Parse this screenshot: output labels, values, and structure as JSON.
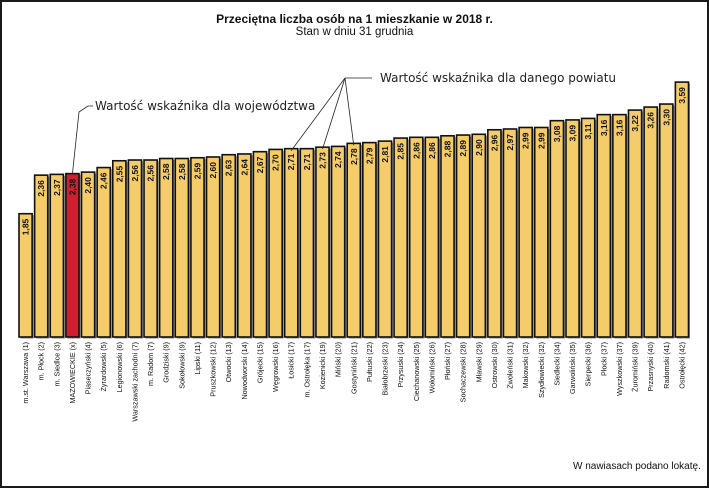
{
  "chart_data": {
    "type": "bar",
    "title": "Przeciętna liczba osób na 1 mieszkanie w 2018 r.",
    "subtitle": "Stan w dniu 31 grudnia",
    "xlabel": "",
    "ylabel": "",
    "grid": false,
    "ylim": [
      0.22,
      3.75
    ],
    "categories": [
      "m.st. Warszawa (1)",
      "m. Płock (2)",
      "m. Siedlce (3)",
      "MAZOWIECKIE (x)",
      "Piaseczyński (4)",
      "Żyrardowski (5)",
      "Legionowski (6)",
      "Warszawski zachodni (7)",
      "m. Radom (7)",
      "Grodziski (9)",
      "Sokołowski (9)",
      "Lipski (11)",
      "Pruszkowski (12)",
      "Otwocki (13)",
      "Nowodworski (14)",
      "Grójecki (15)",
      "Węgrowski (16)",
      "Łosicki (17)",
      "m. Ostrołęka (17)",
      "Kozienicki (19)",
      "Miński (20)",
      "Gostyniński (21)",
      "Pułtuski (22)",
      "Białobrzeski (23)",
      "Przysuski (24)",
      "Ciechanowski (25)",
      "Wołomiński (26)",
      "Płoński (27)",
      "Sochaczewski (28)",
      "Mławski (29)",
      "Ostrowski (30)",
      "Zwoleński (31)",
      "Makowski (32)",
      "Szydłowiecki (32)",
      "Siedlecki (34)",
      "Garwoliński (35)",
      "Sierpecki (36)",
      "Płocki (37)",
      "Wyszkowski (37)",
      "Żuromiński (39)",
      "Przasnyski (40)",
      "Radomski (41)",
      "Ostrołęcki (42)"
    ],
    "values_display": [
      "1,85",
      "2,36",
      "2,37",
      "2,38",
      "2,40",
      "2,46",
      "2,55",
      "2,56",
      "2,56",
      "2,58",
      "2,58",
      "2,59",
      "2,60",
      "2,63",
      "2,64",
      "2,67",
      "2,70",
      "2,71",
      "2,71",
      "2,73",
      "2,74",
      "2,78",
      "2,79",
      "2,81",
      "2,85",
      "2,86",
      "2,86",
      "2,88",
      "2,89",
      "2,90",
      "2,96",
      "2,97",
      "2,99",
      "2,99",
      "3,08",
      "3,09",
      "3,11",
      "3,16",
      "3,16",
      "3,22",
      "3,26",
      "3,30",
      "3,59"
    ],
    "values": [
      1.85,
      2.36,
      2.37,
      2.38,
      2.4,
      2.46,
      2.55,
      2.56,
      2.56,
      2.58,
      2.58,
      2.59,
      2.6,
      2.63,
      2.64,
      2.67,
      2.7,
      2.71,
      2.71,
      2.73,
      2.74,
      2.78,
      2.79,
      2.81,
      2.85,
      2.86,
      2.86,
      2.88,
      2.89,
      2.9,
      2.96,
      2.97,
      2.99,
      2.99,
      3.08,
      3.09,
      3.11,
      3.16,
      3.16,
      3.22,
      3.26,
      3.3,
      3.59
    ],
    "highlight_index": 3,
    "colors": {
      "bar": "#f5cc6a",
      "highlight": "#d01f30",
      "edge": "#111111"
    },
    "annotations": [
      {
        "text": "Wartość wskaźnika dla województwa",
        "target_index": 3
      },
      {
        "text": "Wartość wskaźnika dla danego powiatu",
        "target_indices": [
          17,
          19,
          21
        ]
      }
    ],
    "footnote": "W nawiasach podano lokatę."
  }
}
